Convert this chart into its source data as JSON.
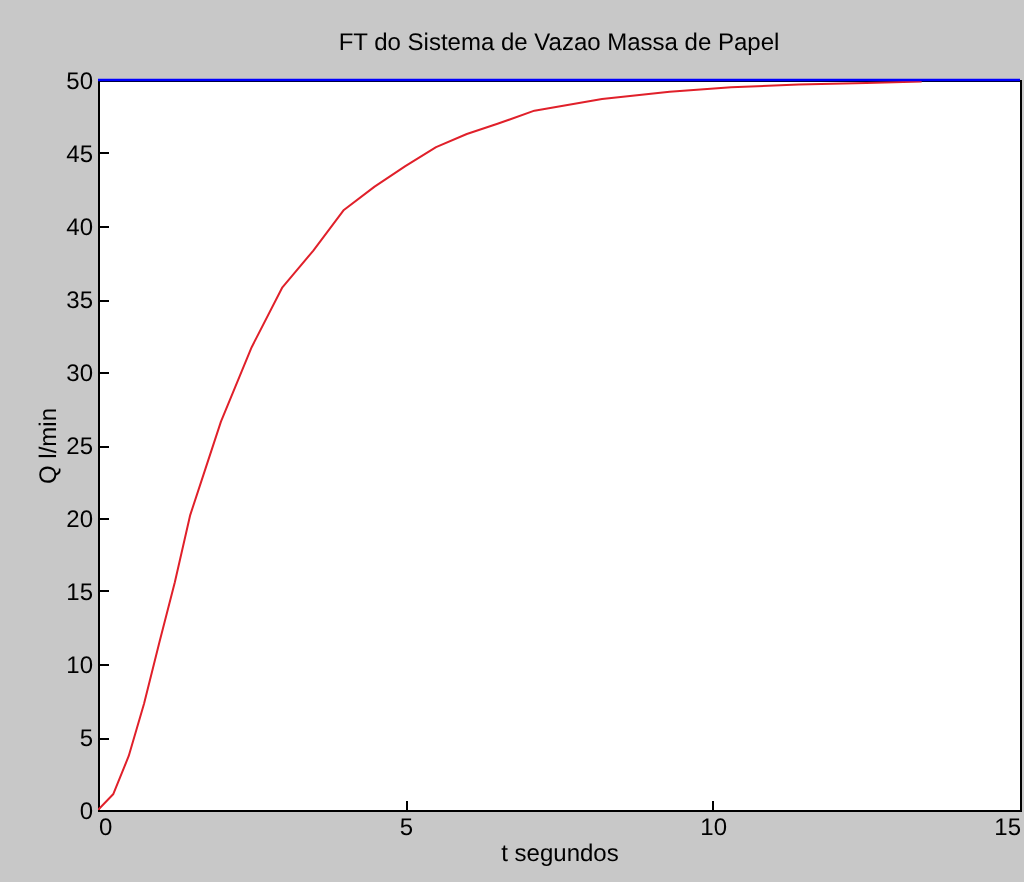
{
  "chart_data": {
    "type": "line",
    "title": "FT do Sistema de Vazao Massa de Papel",
    "xlabel": "t segundos",
    "ylabel": "Q l/min",
    "series": [
      {
        "color": "#e0202a",
        "x": [
          0,
          0.25,
          0.5,
          0.75,
          1,
          1.25,
          1.5,
          1.75,
          2,
          2.5,
          3,
          3.5,
          4,
          4.5,
          5,
          5.5,
          6,
          6.5,
          7.1,
          8.2,
          9.3,
          10.3,
          11.4,
          12.5,
          13.4
        ],
        "values": [
          0,
          1.1,
          3.7,
          7.3,
          11.5,
          15.6,
          20.2,
          23.4,
          26.6,
          31.7,
          35.8,
          38.3,
          41.1,
          42.7,
          44.1,
          45.4,
          46.3,
          47,
          47.9,
          48.7,
          49.2,
          49.5,
          49.7,
          49.8,
          49.9
        ]
      }
    ],
    "ref_lines": [
      {
        "axis": "y",
        "value": 50,
        "color": "#0000ff"
      }
    ],
    "xlim": [
      0,
      15
    ],
    "xticks": [
      0,
      5,
      10,
      15
    ],
    "ylim": [
      0,
      50
    ],
    "yticks": [
      0,
      5,
      10,
      15,
      20,
      25,
      30,
      35,
      40,
      45,
      50
    ],
    "grid": false,
    "marker": "none",
    "line_style": "solid"
  }
}
